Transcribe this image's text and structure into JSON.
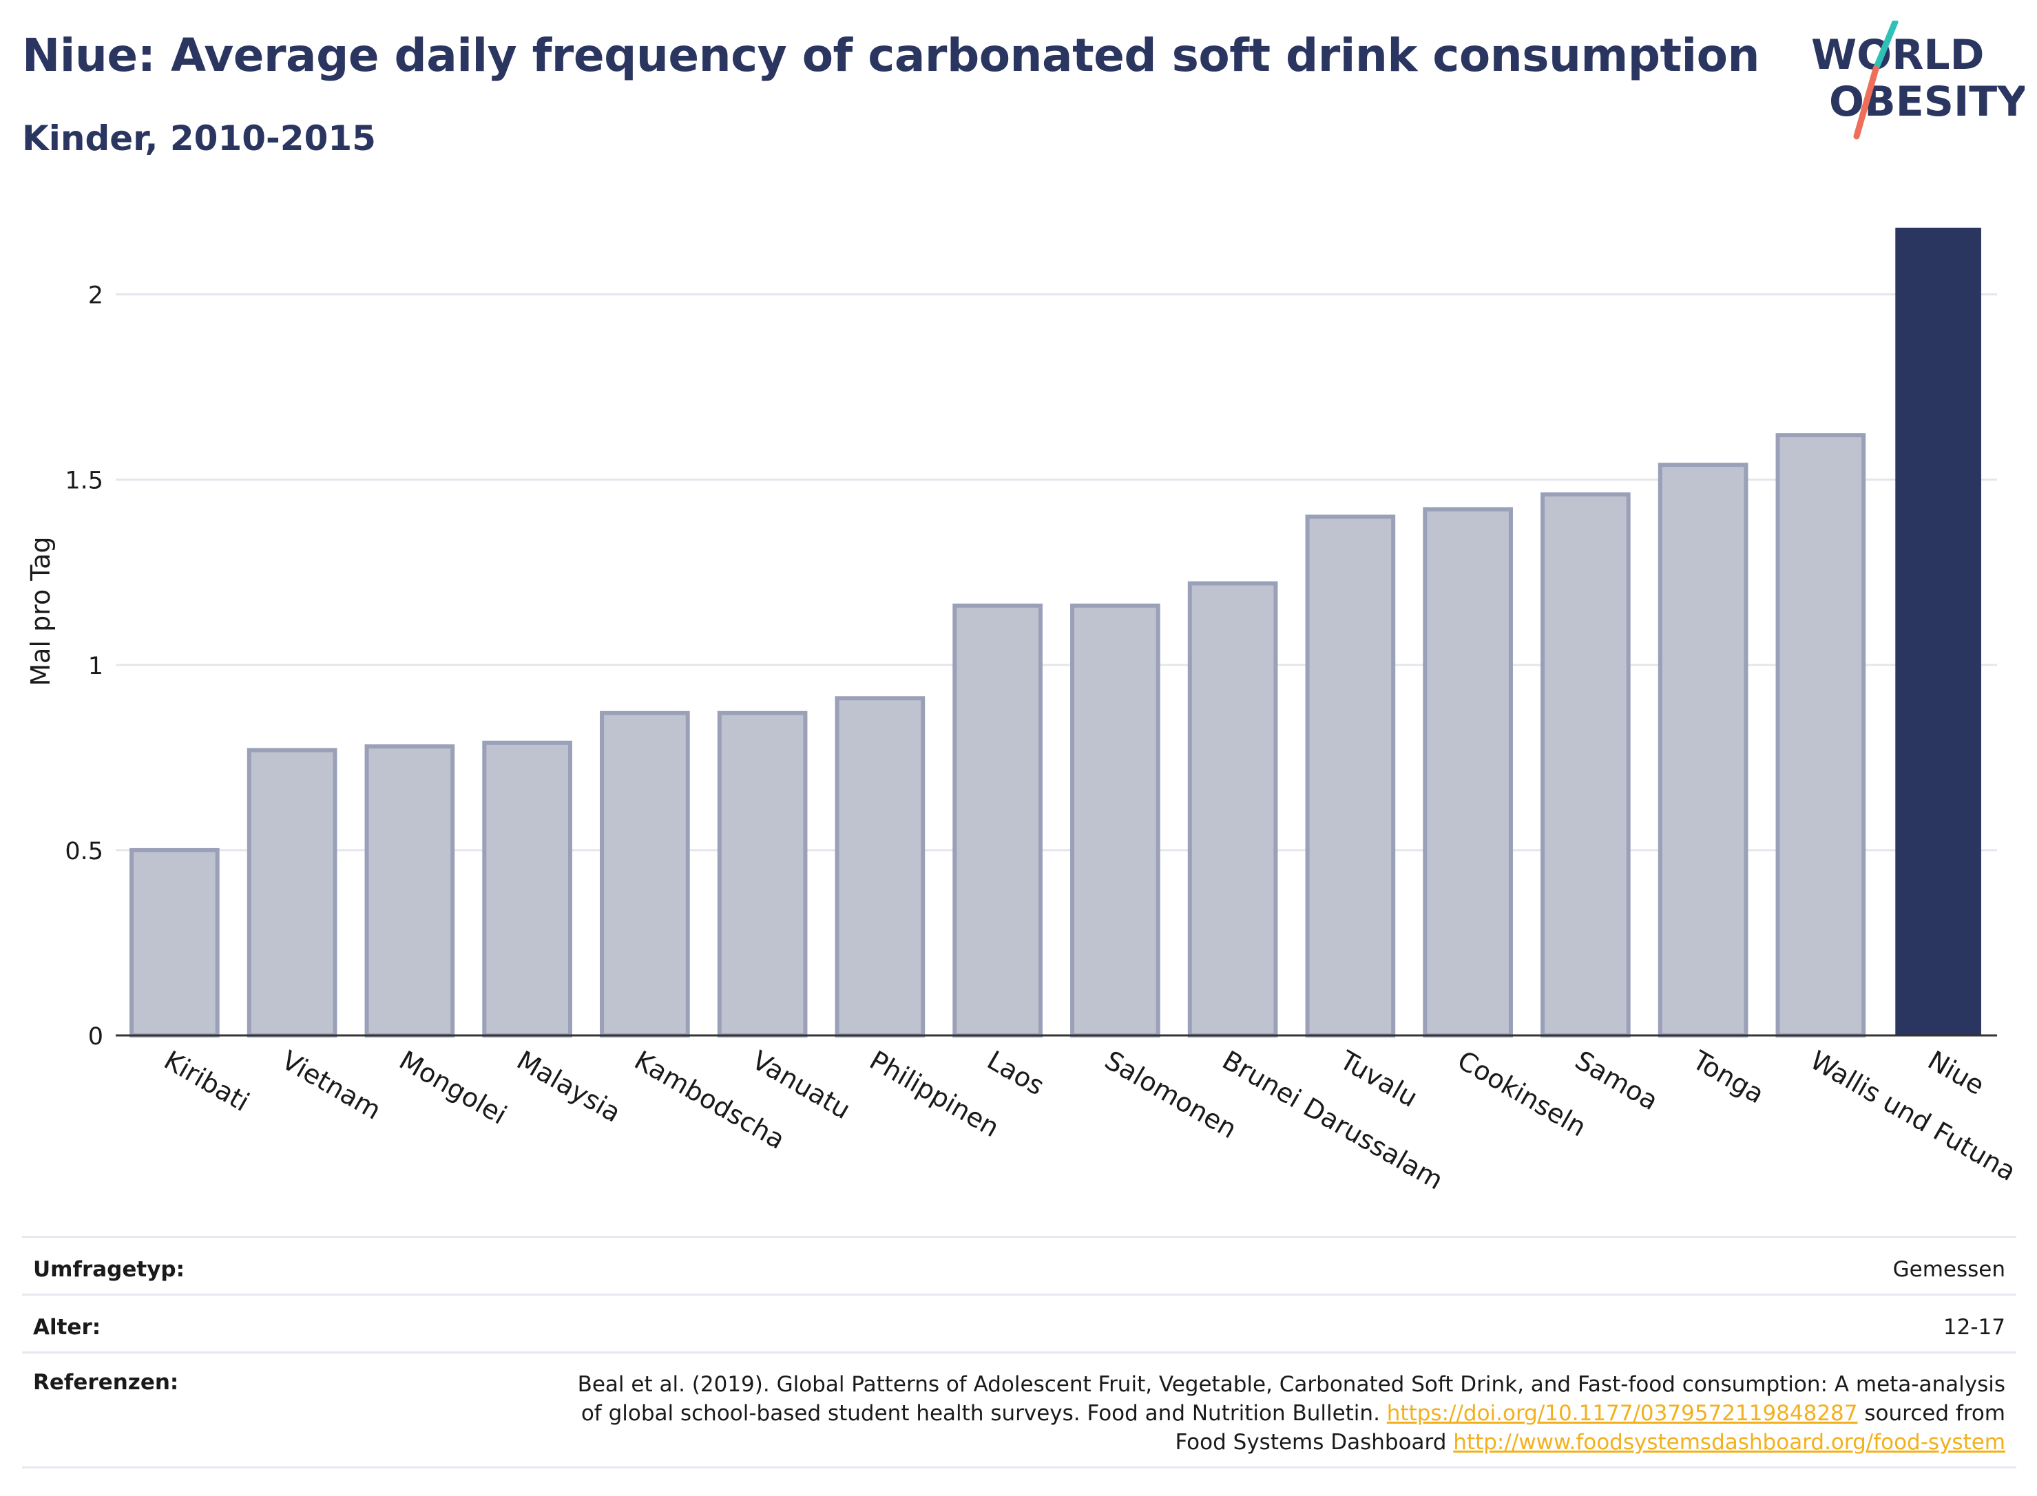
{
  "title": "Niue: Average daily frequency of carbonated soft drink consumption",
  "subtitle": "Kinder, 2010-2015",
  "logo": {
    "line1": "WORLD",
    "line2": "OBESITY",
    "colors": {
      "stroke_top": "#2fc1b8",
      "stroke_bottom": "#ee6e5a",
      "text": "#2a3560"
    }
  },
  "colors": {
    "bar": "#bfc3d0",
    "bar_border": "#9aa0b8",
    "highlight": "#2a3560",
    "grid": "#e4e6ed",
    "axis": "#333333"
  },
  "chart_data": {
    "type": "bar",
    "title": "",
    "xlabel": "",
    "ylabel": "Mal pro Tag",
    "ylim": [
      0,
      2.2
    ],
    "yticks": [
      0,
      0.5,
      1,
      1.5,
      2
    ],
    "ytick_labels": [
      "0",
      "0.5",
      "1",
      "1.5",
      "2"
    ],
    "grid": true,
    "highlight": "Niue",
    "categories": [
      "Kiribati",
      "Vietnam",
      "Mongolei",
      "Malaysia",
      "Kambodscha",
      "Vanuatu",
      "Philippinen",
      "Laos",
      "Salomonen",
      "Brunei Darussalam",
      "Tuvalu",
      "Cookinseln",
      "Samoa",
      "Tonga",
      "Wallis und Futuna",
      "Niue"
    ],
    "values": [
      0.5,
      0.77,
      0.78,
      0.79,
      0.87,
      0.87,
      0.91,
      1.16,
      1.16,
      1.22,
      1.4,
      1.42,
      1.46,
      1.54,
      1.62,
      2.18
    ]
  },
  "meta": {
    "survey_label": "Umfragetyp:",
    "survey_value": "Gemessen",
    "age_label": "Alter:",
    "age_value": "12-17",
    "ref_label": "Referenzen:",
    "ref_line1": "Beal et al. (2019). Global Patterns of Adolescent Fruit, Vegetable, Carbonated Soft Drink, and Fast-food consumption: A meta-analysis",
    "ref_line2_pre": "of global school-based student health surveys. Food and Nutrition Bulletin. ",
    "ref_link1": "https://doi.org/10.1177/0379572119848287",
    "ref_line2_post": " sourced from",
    "ref_line3_pre": "Food Systems Dashboard ",
    "ref_link2": "http://www.foodsystemsdashboard.org/food-system"
  }
}
